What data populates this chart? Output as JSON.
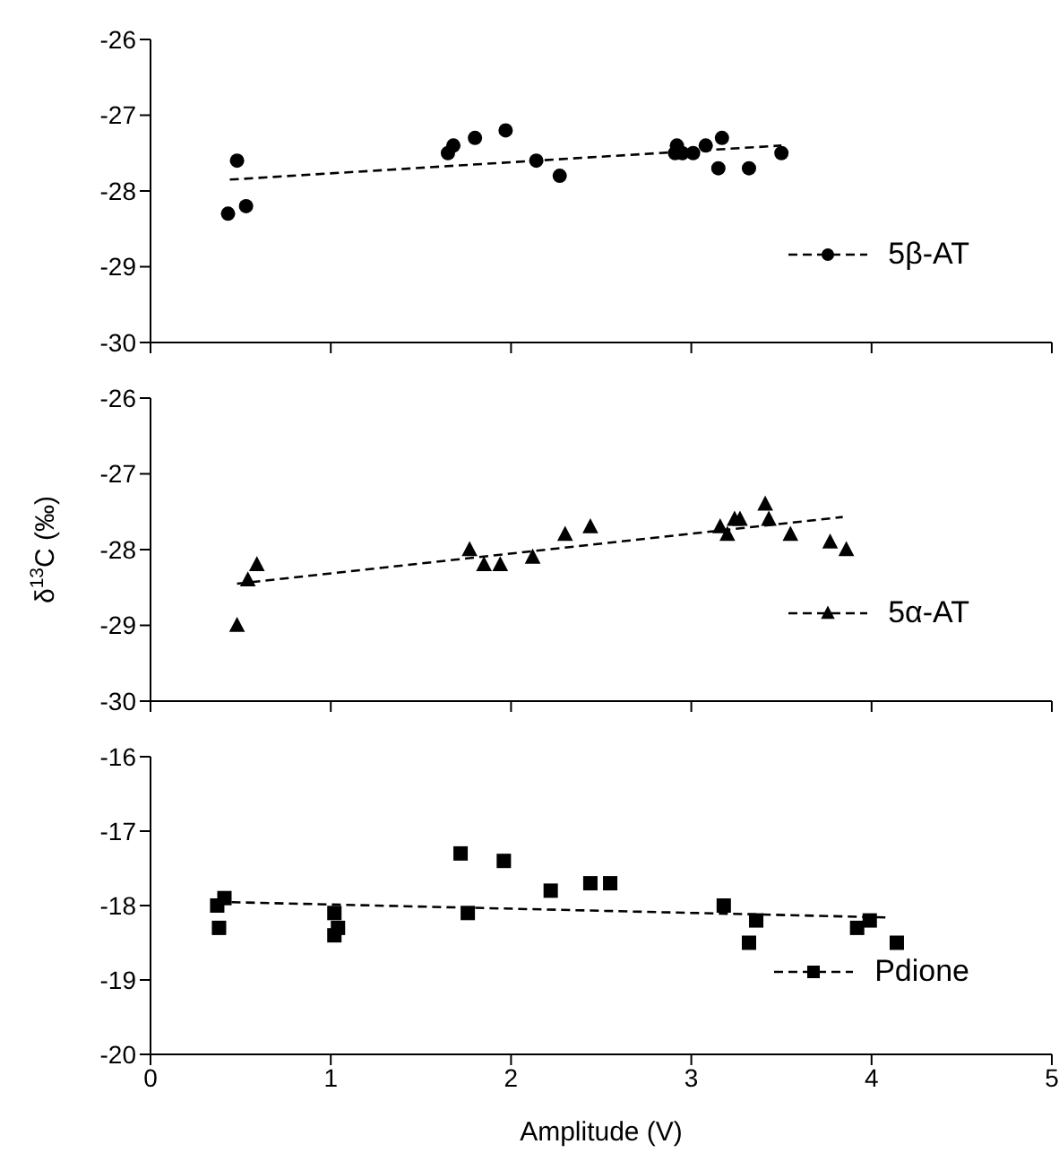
{
  "chart_data": [
    {
      "type": "scatter",
      "xlim": [
        0,
        5
      ],
      "xticks": [
        0,
        1,
        2,
        3,
        4,
        5
      ],
      "ylim": [
        -30,
        -26
      ],
      "yticks": [
        -30,
        -29,
        -28,
        -27,
        -26
      ],
      "tick_labels": "y",
      "legend": "bottom right",
      "grid": false,
      "series": [
        {
          "name": "5β-AT",
          "type": "scatter",
          "color": "#000000",
          "marker": "circle",
          "x": [
            0.43,
            0.48,
            0.53,
            1.65,
            1.68,
            1.8,
            1.97,
            2.14,
            2.27,
            2.91,
            2.92,
            2.95,
            3.01,
            3.08,
            3.15,
            3.17,
            3.32,
            3.5
          ],
          "values": [
            -28.3,
            -27.6,
            -28.2,
            -27.5,
            -27.4,
            -27.3,
            -27.2,
            -27.6,
            -27.8,
            -27.5,
            -27.4,
            -27.5,
            -27.5,
            -27.4,
            -27.7,
            -27.3,
            -27.7,
            -27.5
          ]
        },
        {
          "type": "line",
          "color": "#000000",
          "line_style": "dashed",
          "marker": "none",
          "x": [
            0.44,
            3.5
          ],
          "values": [
            -27.85,
            -27.4
          ]
        }
      ]
    },
    {
      "type": "scatter",
      "xlim": [
        0,
        5
      ],
      "xticks": [
        0,
        1,
        2,
        3,
        4,
        5
      ],
      "ylim": [
        -30,
        -26
      ],
      "yticks": [
        -30,
        -29,
        -28,
        -27,
        -26
      ],
      "tick_labels": "y",
      "legend": "bottom right",
      "grid": false,
      "ylabel": "δ$^{13}$C (‰)",
      "series": [
        {
          "name": "5α-AT",
          "type": "scatter",
          "color": "#000000",
          "marker": "triangle",
          "x": [
            0.48,
            0.54,
            0.59,
            1.77,
            1.85,
            1.94,
            2.12,
            2.3,
            2.44,
            3.16,
            3.2,
            3.24,
            3.27,
            3.41,
            3.43,
            3.55,
            3.77,
            3.86
          ],
          "values": [
            -29.0,
            -28.4,
            -28.2,
            -28.0,
            -28.2,
            -28.2,
            -28.1,
            -27.8,
            -27.7,
            -27.7,
            -27.8,
            -27.6,
            -27.6,
            -27.4,
            -27.6,
            -27.8,
            -27.9,
            -28.0
          ]
        },
        {
          "type": "line",
          "color": "#000000",
          "line_style": "dashed",
          "marker": "none",
          "x": [
            0.48,
            3.84
          ],
          "values": [
            -28.45,
            -27.57
          ]
        }
      ]
    },
    {
      "type": "scatter",
      "xlim": [
        0,
        5
      ],
      "xticks": [
        0,
        1,
        2,
        3,
        4,
        5
      ],
      "ylim": [
        -20,
        -16
      ],
      "yticks": [
        -20,
        -19,
        -18,
        -17,
        -16
      ],
      "legend": "bottom right",
      "grid": false,
      "xlabel": "Amplitude (V)",
      "series": [
        {
          "name": "Pdione",
          "type": "scatter",
          "color": "#000000",
          "marker": "square",
          "x": [
            0.37,
            0.38,
            0.41,
            1.02,
            1.02,
            1.04,
            1.72,
            1.76,
            1.96,
            2.22,
            2.44,
            2.55,
            3.18,
            3.32,
            3.36,
            3.92,
            3.99,
            4.14
          ],
          "values": [
            -18.0,
            -18.3,
            -17.9,
            -18.1,
            -18.4,
            -18.3,
            -17.3,
            -18.1,
            -17.4,
            -17.8,
            -17.7,
            -17.7,
            -18.0,
            -18.5,
            -18.2,
            -18.3,
            -18.2,
            -18.5
          ]
        },
        {
          "type": "line",
          "color": "#000000",
          "line_style": "dashed",
          "marker": "none",
          "x": [
            0.37,
            4.08
          ],
          "values": [
            -17.95,
            -18.16
          ]
        }
      ]
    }
  ]
}
